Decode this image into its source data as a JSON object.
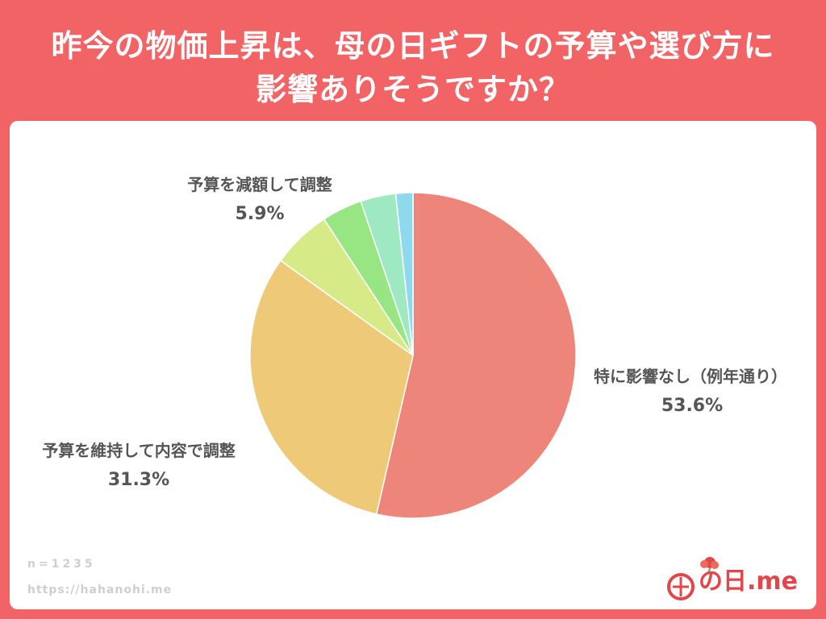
{
  "title": {
    "line1": "昨今の物価上昇は、母の日ギフトの予算や選び方に",
    "line2": "影響ありそうですか？"
  },
  "footnote": {
    "n": "n=1235",
    "url": "https://hahanohi.me"
  },
  "brand": {
    "text": "の日.me",
    "logo_icon": "carnation-flower-icon"
  },
  "chart_data": {
    "type": "pie",
    "slices": [
      {
        "label": "特に影響なし（例年通り）",
        "value": 53.6,
        "display": "53.6%",
        "color": "#EE857A"
      },
      {
        "label": "予算を維持して内容で調整",
        "value": 31.3,
        "display": "31.3%",
        "color": "#EEC977"
      },
      {
        "label": "予算を減額して調整",
        "value": 5.9,
        "display": "5.9%",
        "color": "#D6EB88"
      },
      {
        "label": "",
        "value": 4.0,
        "display": "",
        "color": "#98E583"
      },
      {
        "label": "",
        "value": 3.5,
        "display": "",
        "color": "#9EE9C2"
      },
      {
        "label": "",
        "value": 1.7,
        "display": "",
        "color": "#8FD9EF"
      }
    ],
    "start": "top",
    "direction": "clockwise"
  }
}
